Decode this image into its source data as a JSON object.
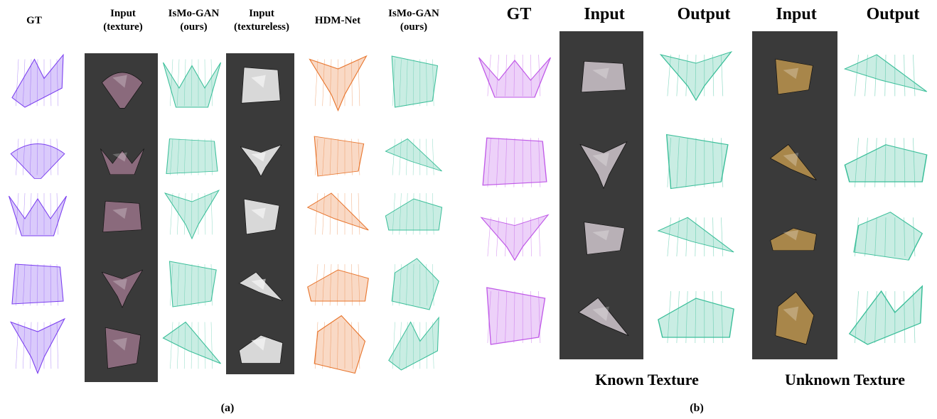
{
  "panel_a": {
    "headers": {
      "gt": "GT",
      "input_texture_l1": "Input",
      "input_texture_l2": "(texture)",
      "ismo_gan_l1": "IsMo-GAN",
      "ismo_gan_l2": "(ours)",
      "input_textureless_l1": "Input",
      "input_textureless_l2": "(textureless)",
      "hdm_net": "HDM-Net",
      "ismo_gan2_l1": "IsMo-GAN",
      "ismo_gan2_l2": "(ours)"
    },
    "caption": "(a)"
  },
  "panel_b": {
    "headers": {
      "gt": "GT",
      "input_known": "Input",
      "output_known": "Output",
      "input_unknown": "Input",
      "output_unknown": "Output"
    },
    "known_label": "Known Texture",
    "unknown_label": "Unknown Texture",
    "caption": "(b)"
  },
  "colors": {
    "gt": "#7b3ff0",
    "gt_b": "#c05ae8",
    "ours": "#3cbf9a",
    "hdm": "#e8762e",
    "panel_bg": "#3a3a3a",
    "texture_known": "#8a6a7c",
    "texture_unknown": "#a8864a"
  }
}
